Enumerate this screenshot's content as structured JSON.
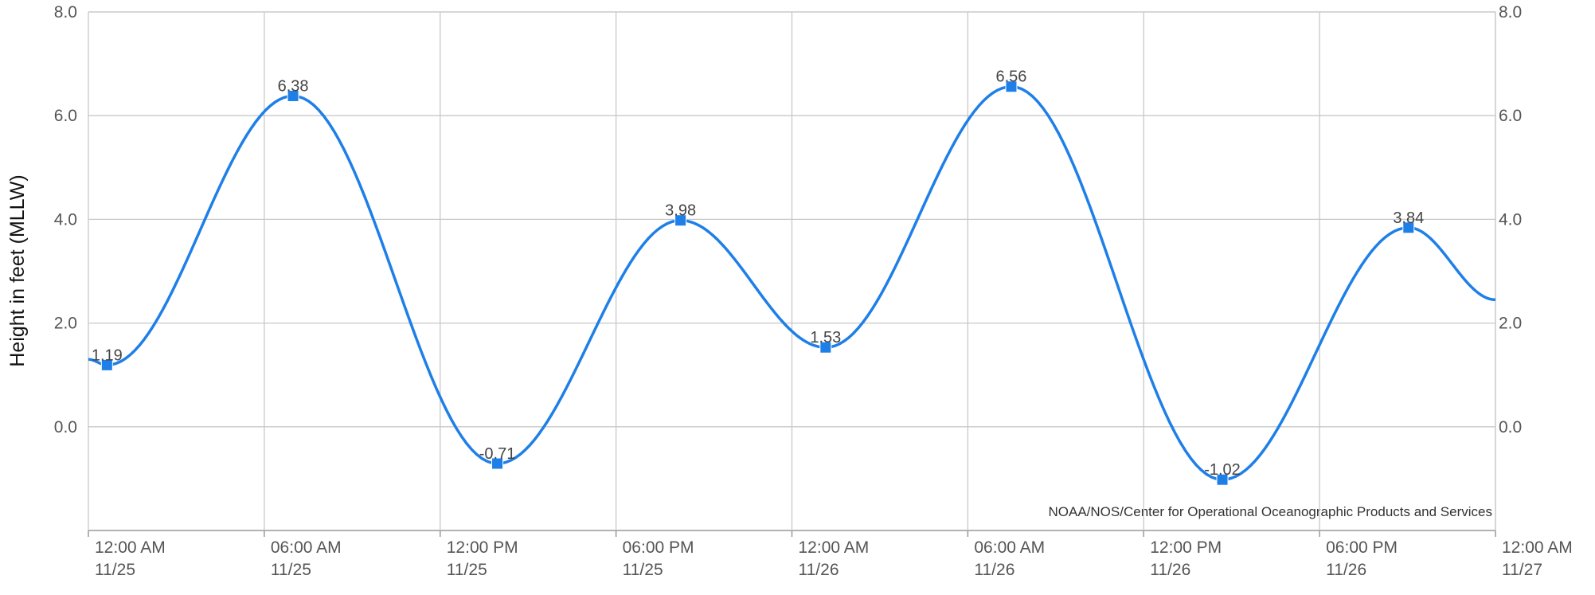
{
  "chart_data": {
    "type": "line",
    "y_label": "Height in feet (MLLW)",
    "source": "NOAA/NOS/Center for Operational Oceanographic Products and Services",
    "x": [
      "11/25 12:00 AM",
      "11/25 12:38 AM",
      "11/25 06:59 AM",
      "11/25 01:57 PM",
      "11/25 08:12 PM",
      "11/26 01:09 AM",
      "11/26 07:29 AM",
      "11/26 02:41 PM",
      "11/26 09:02 PM",
      "11/27 12:00 AM"
    ],
    "values": [
      1.3,
      1.19,
      6.38,
      -0.71,
      3.98,
      1.53,
      6.56,
      -1.02,
      3.84,
      2.45
    ],
    "value_labels": [
      null,
      "1.19",
      "6.38",
      "-0.71",
      "3.98",
      "1.53",
      "6.56",
      "-1.02",
      "3.84",
      null
    ],
    "color": "#1e7fe8",
    "xlim": [
      "11/25 12:00 AM",
      "11/27 12:00 AM"
    ],
    "xticks": [
      {
        "value": "11/25 12:00 AM",
        "label": [
          "12:00 AM",
          "11/25"
        ]
      },
      {
        "value": "11/25 06:00 AM",
        "label": [
          "06:00 AM",
          "11/25"
        ]
      },
      {
        "value": "11/25 12:00 PM",
        "label": [
          "12:00 PM",
          "11/25"
        ]
      },
      {
        "value": "11/25 06:00 PM",
        "label": [
          "06:00 PM",
          "11/25"
        ]
      },
      {
        "value": "11/26 12:00 AM",
        "label": [
          "12:00 AM",
          "11/26"
        ]
      },
      {
        "value": "11/26 06:00 AM",
        "label": [
          "06:00 AM",
          "11/26"
        ]
      },
      {
        "value": "11/26 12:00 PM",
        "label": [
          "12:00 PM",
          "11/26"
        ]
      },
      {
        "value": "11/26 06:00 PM",
        "label": [
          "06:00 PM",
          "11/26"
        ]
      },
      {
        "value": "11/27 12:00 AM",
        "label": [
          "12:00 AM",
          "11/27"
        ]
      }
    ],
    "ylim": [
      -2,
      8
    ],
    "yticks": [
      {
        "value": 0,
        "label": "0.0"
      },
      {
        "value": 2,
        "label": "2.0"
      },
      {
        "value": 4,
        "label": "4.0"
      },
      {
        "value": 6,
        "label": "6.0"
      },
      {
        "value": 8,
        "label": "8.0"
      }
    ],
    "grid": true
  }
}
